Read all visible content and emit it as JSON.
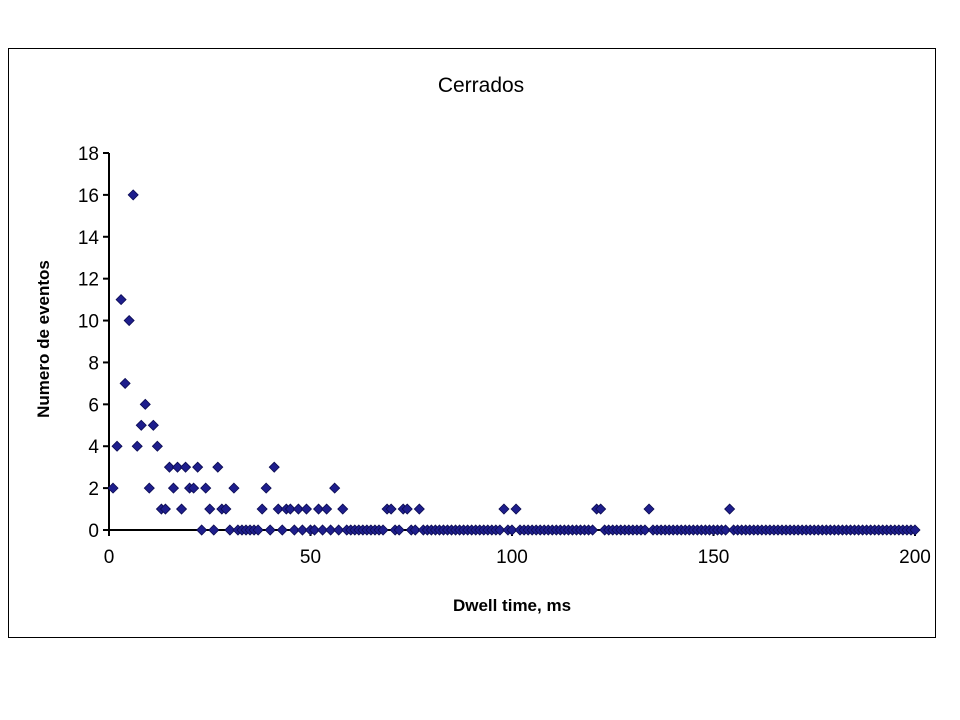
{
  "chart_data": {
    "type": "scatter",
    "title": "Cerrados",
    "xlabel": "Dwell time, ms",
    "ylabel": "Numero de eventos",
    "xlim": [
      0,
      200
    ],
    "ylim": [
      0,
      18
    ],
    "x_ticks": [
      0,
      50,
      100,
      150,
      200
    ],
    "y_ticks": [
      0,
      2,
      4,
      6,
      8,
      10,
      12,
      14,
      16,
      18
    ],
    "grid": false,
    "legend": false,
    "marker": "diamond",
    "marker_color": "#1e1e8c",
    "series": [
      {
        "points": [
          [
            1,
            2
          ],
          [
            2,
            4
          ],
          [
            3,
            11
          ],
          [
            4,
            7
          ],
          [
            5,
            10
          ],
          [
            6,
            16
          ],
          [
            7,
            4
          ],
          [
            8,
            5
          ],
          [
            9,
            6
          ],
          [
            10,
            2
          ],
          [
            11,
            5
          ],
          [
            12,
            4
          ],
          [
            13,
            1
          ],
          [
            14,
            1
          ],
          [
            15,
            3
          ],
          [
            16,
            2
          ],
          [
            17,
            3
          ],
          [
            18,
            1
          ],
          [
            19,
            3
          ],
          [
            20,
            2
          ],
          [
            21,
            2
          ],
          [
            22,
            3
          ],
          [
            23,
            0
          ],
          [
            24,
            2
          ],
          [
            25,
            1
          ],
          [
            26,
            0
          ],
          [
            27,
            3
          ],
          [
            28,
            1
          ],
          [
            29,
            1
          ],
          [
            30,
            0
          ],
          [
            31,
            2
          ],
          [
            32,
            0
          ],
          [
            33,
            0
          ],
          [
            34,
            0
          ],
          [
            35,
            0
          ],
          [
            36,
            0
          ],
          [
            37,
            0
          ],
          [
            38,
            1
          ],
          [
            39,
            2
          ],
          [
            40,
            0
          ],
          [
            41,
            3
          ],
          [
            42,
            1
          ],
          [
            43,
            0
          ],
          [
            44,
            1
          ],
          [
            45,
            1
          ],
          [
            46,
            0
          ],
          [
            47,
            1
          ],
          [
            48,
            0
          ],
          [
            49,
            1
          ],
          [
            50,
            0
          ],
          [
            51,
            0
          ],
          [
            52,
            1
          ],
          [
            53,
            0
          ],
          [
            54,
            1
          ],
          [
            55,
            0
          ],
          [
            56,
            2
          ],
          [
            57,
            0
          ],
          [
            58,
            1
          ],
          [
            59,
            0
          ],
          [
            60,
            0
          ],
          [
            61,
            0
          ],
          [
            62,
            0
          ],
          [
            63,
            0
          ],
          [
            64,
            0
          ],
          [
            65,
            0
          ],
          [
            66,
            0
          ],
          [
            67,
            0
          ],
          [
            68,
            0
          ],
          [
            69,
            1
          ],
          [
            70,
            1
          ],
          [
            71,
            0
          ],
          [
            72,
            0
          ],
          [
            73,
            1
          ],
          [
            74,
            1
          ],
          [
            75,
            0
          ],
          [
            76,
            0
          ],
          [
            77,
            1
          ],
          [
            78,
            0
          ],
          [
            79,
            0
          ],
          [
            80,
            0
          ],
          [
            81,
            0
          ],
          [
            82,
            0
          ],
          [
            83,
            0
          ],
          [
            84,
            0
          ],
          [
            85,
            0
          ],
          [
            86,
            0
          ],
          [
            87,
            0
          ],
          [
            88,
            0
          ],
          [
            89,
            0
          ],
          [
            90,
            0
          ],
          [
            91,
            0
          ],
          [
            92,
            0
          ],
          [
            93,
            0
          ],
          [
            94,
            0
          ],
          [
            95,
            0
          ],
          [
            96,
            0
          ],
          [
            97,
            0
          ],
          [
            98,
            1
          ],
          [
            99,
            0
          ],
          [
            100,
            0
          ],
          [
            101,
            1
          ],
          [
            102,
            0
          ],
          [
            103,
            0
          ],
          [
            104,
            0
          ],
          [
            105,
            0
          ],
          [
            106,
            0
          ],
          [
            107,
            0
          ],
          [
            108,
            0
          ],
          [
            109,
            0
          ],
          [
            110,
            0
          ],
          [
            111,
            0
          ],
          [
            112,
            0
          ],
          [
            113,
            0
          ],
          [
            114,
            0
          ],
          [
            115,
            0
          ],
          [
            116,
            0
          ],
          [
            117,
            0
          ],
          [
            118,
            0
          ],
          [
            119,
            0
          ],
          [
            120,
            0
          ],
          [
            121,
            1
          ],
          [
            122,
            1
          ],
          [
            123,
            0
          ],
          [
            124,
            0
          ],
          [
            125,
            0
          ],
          [
            126,
            0
          ],
          [
            127,
            0
          ],
          [
            128,
            0
          ],
          [
            129,
            0
          ],
          [
            130,
            0
          ],
          [
            131,
            0
          ],
          [
            132,
            0
          ],
          [
            133,
            0
          ],
          [
            134,
            1
          ],
          [
            135,
            0
          ],
          [
            136,
            0
          ],
          [
            137,
            0
          ],
          [
            138,
            0
          ],
          [
            139,
            0
          ],
          [
            140,
            0
          ],
          [
            141,
            0
          ],
          [
            142,
            0
          ],
          [
            143,
            0
          ],
          [
            144,
            0
          ],
          [
            145,
            0
          ],
          [
            146,
            0
          ],
          [
            147,
            0
          ],
          [
            148,
            0
          ],
          [
            149,
            0
          ],
          [
            150,
            0
          ],
          [
            151,
            0
          ],
          [
            152,
            0
          ],
          [
            153,
            0
          ],
          [
            154,
            1
          ],
          [
            155,
            0
          ],
          [
            156,
            0
          ],
          [
            157,
            0
          ],
          [
            158,
            0
          ],
          [
            159,
            0
          ],
          [
            160,
            0
          ],
          [
            161,
            0
          ],
          [
            162,
            0
          ],
          [
            163,
            0
          ],
          [
            164,
            0
          ],
          [
            165,
            0
          ],
          [
            166,
            0
          ],
          [
            167,
            0
          ],
          [
            168,
            0
          ],
          [
            169,
            0
          ],
          [
            170,
            0
          ],
          [
            171,
            0
          ],
          [
            172,
            0
          ],
          [
            173,
            0
          ],
          [
            174,
            0
          ],
          [
            175,
            0
          ],
          [
            176,
            0
          ],
          [
            177,
            0
          ],
          [
            178,
            0
          ],
          [
            179,
            0
          ],
          [
            180,
            0
          ],
          [
            181,
            0
          ],
          [
            182,
            0
          ],
          [
            183,
            0
          ],
          [
            184,
            0
          ],
          [
            185,
            0
          ],
          [
            186,
            0
          ],
          [
            187,
            0
          ],
          [
            188,
            0
          ],
          [
            189,
            0
          ],
          [
            190,
            0
          ],
          [
            191,
            0
          ],
          [
            192,
            0
          ],
          [
            193,
            0
          ],
          [
            194,
            0
          ],
          [
            195,
            0
          ],
          [
            196,
            0
          ],
          [
            197,
            0
          ],
          [
            198,
            0
          ],
          [
            199,
            0
          ],
          [
            200,
            0
          ]
        ]
      }
    ]
  }
}
